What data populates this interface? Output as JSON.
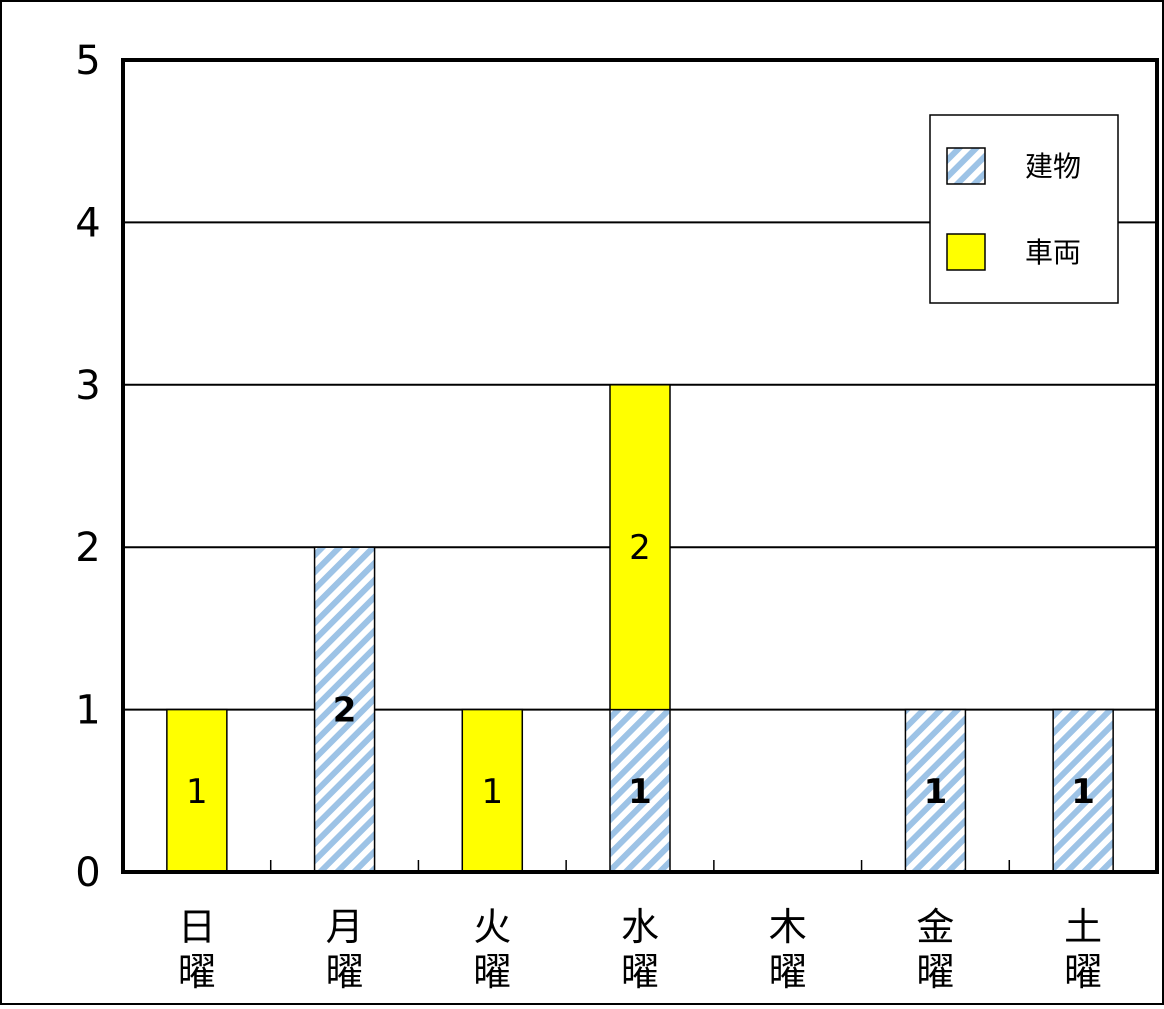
{
  "chart_data": {
    "type": "bar",
    "stacked": true,
    "categories": [
      {
        "top": "日",
        "bottom": "曜"
      },
      {
        "top": "月",
        "bottom": "曜"
      },
      {
        "top": "火",
        "bottom": "曜"
      },
      {
        "top": "水",
        "bottom": "曜"
      },
      {
        "top": "木",
        "bottom": "曜"
      },
      {
        "top": "金",
        "bottom": "曜"
      },
      {
        "top": "土",
        "bottom": "曜"
      }
    ],
    "series": [
      {
        "name": "建物",
        "values": [
          0,
          2,
          0,
          1,
          0,
          1,
          1
        ],
        "color": "#9dc3e6",
        "pattern": "diagonal-hatch"
      },
      {
        "name": "車両",
        "values": [
          1,
          0,
          1,
          2,
          0,
          0,
          0
        ],
        "color": "#ffff00",
        "pattern": "solid"
      }
    ],
    "data_labels": [
      [
        "",
        "2",
        "",
        "1",
        "",
        "1",
        "1"
      ],
      [
        "1",
        "",
        "1",
        "2",
        "",
        "",
        ""
      ]
    ],
    "y_ticks": [
      "0",
      "1",
      "2",
      "3",
      "4",
      "5"
    ],
    "ylim": [
      0,
      5
    ],
    "grid": true,
    "legend_position": "top-right"
  }
}
